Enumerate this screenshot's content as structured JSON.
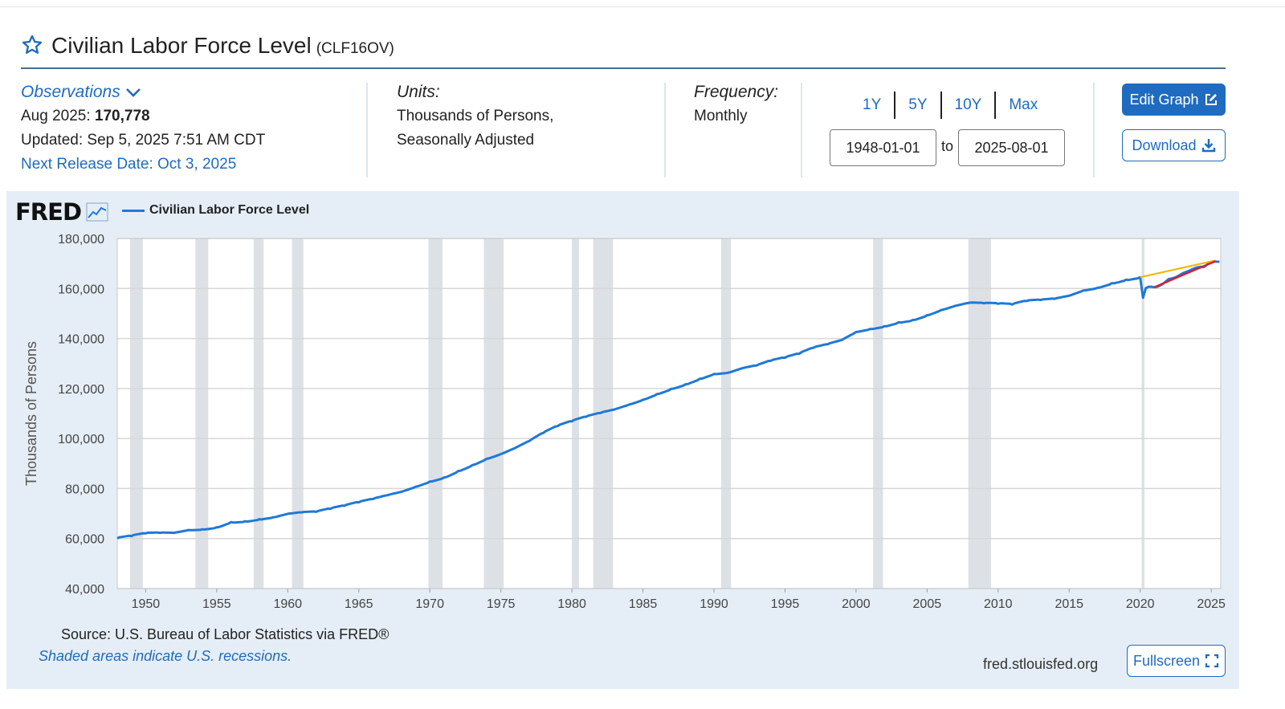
{
  "series": {
    "title": "Civilian Labor Force Level",
    "id": "(CLF16OV)"
  },
  "observations": {
    "label": "Observations",
    "latest_date": "Aug 2025:",
    "latest_value": "170,778",
    "updated": "Updated: Sep 5, 2025 7:51 AM CDT",
    "next_release": "Next Release Date: Oct 3, 2025"
  },
  "units": {
    "label": "Units:",
    "line1": "Thousands of Persons,",
    "line2": "Seasonally Adjusted"
  },
  "frequency": {
    "label": "Frequency:",
    "value": "Monthly"
  },
  "range_buttons": [
    "1Y",
    "5Y",
    "10Y",
    "Max"
  ],
  "date_range": {
    "start": "1948-01-01",
    "separator": "to",
    "end": "2025-08-01"
  },
  "buttons": {
    "edit": "Edit Graph",
    "download": "Download",
    "fullscreen": "Fullscreen"
  },
  "colors": {
    "accent": "#1f6bbf",
    "series_line": "#1f78d8",
    "panel_bg": "#e5eef6",
    "recession": "#dde1e6",
    "trend_yellow": "#f5b400",
    "trend_red": "#d0213a"
  },
  "footer": {
    "source": "Source: U.S. Bureau of Labor Statistics via FRED®",
    "note": "Shaded areas indicate U.S. recessions.",
    "site": "fred.stlouisfed.org"
  },
  "logo_text": "FRED",
  "chart_data": {
    "type": "line",
    "title": "Civilian Labor Force Level",
    "ylabel": "Thousands of Persons",
    "xlabel": "",
    "xlim": [
      1948.0,
      2025.67
    ],
    "ylim": [
      40000,
      180000
    ],
    "y_ticks": [
      40000,
      60000,
      80000,
      100000,
      120000,
      140000,
      160000,
      180000
    ],
    "y_tick_labels": [
      "40,000",
      "60,000",
      "80,000",
      "100,000",
      "120,000",
      "140,000",
      "160,000",
      "180,000"
    ],
    "x_ticks": [
      1950,
      1955,
      1960,
      1965,
      1970,
      1975,
      1980,
      1985,
      1990,
      1995,
      2000,
      2005,
      2010,
      2015,
      2020,
      2025
    ],
    "x_tick_labels": [
      "1950",
      "1955",
      "1960",
      "1965",
      "1970",
      "1975",
      "1980",
      "1985",
      "1990",
      "1995",
      "2000",
      "2005",
      "2010",
      "2015",
      "2020",
      "2025"
    ],
    "grid": true,
    "legend": "top-left",
    "recessions": [
      [
        1948.9,
        1949.8
      ],
      [
        1953.5,
        1954.4
      ],
      [
        1957.6,
        1958.3
      ],
      [
        1960.3,
        1961.1
      ],
      [
        1969.9,
        1970.9
      ],
      [
        1973.8,
        1975.2
      ],
      [
        1980.0,
        1980.5
      ],
      [
        1981.5,
        1982.9
      ],
      [
        1990.5,
        1991.2
      ],
      [
        2001.2,
        2001.9
      ],
      [
        2007.9,
        2009.5
      ],
      [
        2020.1,
        2020.3
      ]
    ],
    "series": [
      {
        "name": "Civilian Labor Force Level",
        "x": [
          1948.0,
          1949.0,
          1950.0,
          1951.0,
          1952.0,
          1953.0,
          1954.0,
          1955.0,
          1956.0,
          1957.0,
          1958.0,
          1959.0,
          1960.0,
          1961.0,
          1962.0,
          1963.0,
          1964.0,
          1965.0,
          1966.0,
          1967.0,
          1968.0,
          1969.0,
          1970.0,
          1971.0,
          1972.0,
          1973.0,
          1974.0,
          1975.0,
          1976.0,
          1977.0,
          1978.0,
          1979.0,
          1980.0,
          1981.0,
          1982.0,
          1983.0,
          1984.0,
          1985.0,
          1986.0,
          1987.0,
          1988.0,
          1989.0,
          1990.0,
          1991.0,
          1992.0,
          1993.0,
          1994.0,
          1995.0,
          1996.0,
          1997.0,
          1998.0,
          1999.0,
          2000.0,
          2001.0,
          2002.0,
          2003.0,
          2004.0,
          2005.0,
          2006.0,
          2007.0,
          2008.0,
          2009.0,
          2010.0,
          2011.0,
          2012.0,
          2013.0,
          2014.0,
          2015.0,
          2016.0,
          2017.0,
          2018.0,
          2019.0,
          2020.0,
          2020.2,
          2020.4,
          2020.6,
          2021.0,
          2021.5,
          2022.0,
          2022.5,
          2023.0,
          2023.5,
          2024.0,
          2024.5,
          2025.0,
          2025.3,
          2025.58
        ],
        "values": [
          60100,
          61000,
          62100,
          62300,
          62300,
          63400,
          63700,
          64500,
          66600,
          66900,
          67700,
          68500,
          69900,
          70500,
          70700,
          71900,
          73100,
          74500,
          75800,
          77300,
          78700,
          80700,
          82800,
          84400,
          87000,
          89400,
          91900,
          93800,
          96200,
          99000,
          102300,
          105000,
          106900,
          108700,
          110200,
          111600,
          113500,
          115500,
          117800,
          119900,
          121700,
          123900,
          125800,
          126300,
          128100,
          129200,
          131100,
          132300,
          133900,
          136300,
          137700,
          139400,
          142600,
          143800,
          144900,
          146500,
          147400,
          149300,
          151400,
          153100,
          154300,
          154100,
          153900,
          153600,
          155000,
          155400,
          155900,
          157100,
          159200,
          160300,
          162100,
          163500,
          164500,
          156300,
          160200,
          160700,
          160500,
          161500,
          163800,
          164500,
          166100,
          167200,
          168400,
          168600,
          170500,
          170800,
          170700
        ]
      }
    ]
  }
}
